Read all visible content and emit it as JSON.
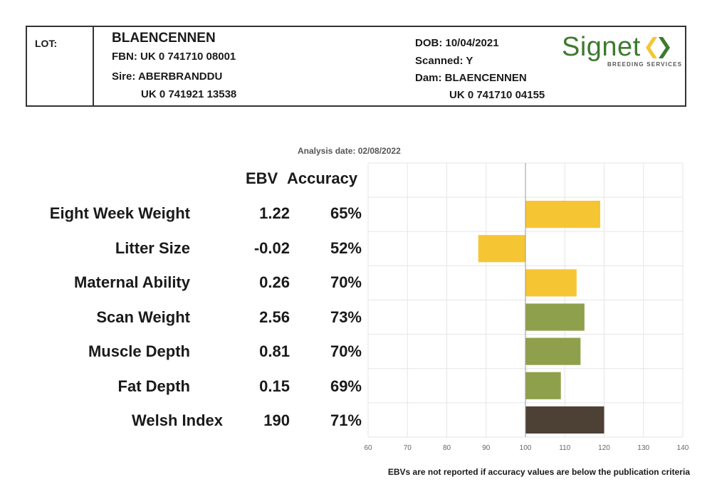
{
  "header": {
    "lot_label": "LOT:",
    "name": "BLAENCENNEN",
    "fbn": "FBN: UK 0 741710 08001",
    "sire": "Sire: ABERBRANDDU",
    "sire_id": "UK 0 741921 13538",
    "dob": "DOB: 10/04/2021",
    "scanned": "Scanned: Y",
    "dam": "Dam: BLAENCENNEN",
    "dam_id": "UK 0 741710 04155",
    "logo_word": "Signet",
    "logo_sub": "BREEDING SERVICES",
    "logo_color": "#3d7a2e",
    "logo_icon": "signet-chevrons-icon"
  },
  "analysis_date": "Analysis date: 02/08/2022",
  "columns": {
    "ebv": "EBV",
    "accuracy": "Accuracy"
  },
  "rows": [
    {
      "trait": "Eight Week Weight",
      "ebv": "1.22",
      "accuracy": "65%"
    },
    {
      "trait": "Litter Size",
      "ebv": "-0.02",
      "accuracy": "52%"
    },
    {
      "trait": "Maternal Ability",
      "ebv": "0.26",
      "accuracy": "70%"
    },
    {
      "trait": "Scan Weight",
      "ebv": "2.56",
      "accuracy": "73%"
    },
    {
      "trait": "Muscle Depth",
      "ebv": "0.81",
      "accuracy": "70%"
    },
    {
      "trait": "Fat Depth",
      "ebv": "0.15",
      "accuracy": "69%"
    },
    {
      "trait": "Welsh Index",
      "ebv": "190",
      "accuracy": "71%"
    }
  ],
  "footnote": "EBVs are not reported if accuracy values are below the publication criteria",
  "chart_data": {
    "type": "bar",
    "orientation": "horizontal",
    "baseline": 100,
    "xlim": [
      60,
      140
    ],
    "xticks": [
      "60",
      "70",
      "80",
      "90",
      "100",
      "110",
      "120",
      "130",
      "140"
    ],
    "grid": true,
    "categories": [
      "Eight Week Weight",
      "Litter Size",
      "Maternal Ability",
      "Scan Weight",
      "Muscle Depth",
      "Fat Depth",
      "Welsh Index"
    ],
    "values": [
      119,
      88,
      113,
      115,
      114,
      109,
      120
    ],
    "colors": [
      "#f6c533",
      "#f6c533",
      "#f6c533",
      "#8fa04c",
      "#8fa04c",
      "#8fa04c",
      "#4d4035"
    ]
  }
}
